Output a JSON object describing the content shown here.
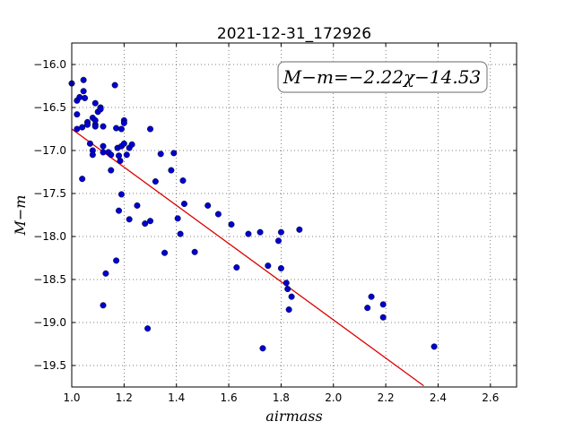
{
  "chart_data": {
    "type": "scatter",
    "title": "2021-12-31_172926",
    "xlabel": "airmass",
    "ylabel": "M−m",
    "xlim": [
      1.0,
      2.7
    ],
    "ylim": [
      -15.75,
      -19.75
    ],
    "y_inverted": true,
    "grid": true,
    "grid_style": "dotted",
    "x_ticks": [
      1.0,
      1.2,
      1.4,
      1.6,
      1.8,
      2.0,
      2.2,
      2.4,
      2.6
    ],
    "x_tick_labels": [
      "1.0",
      "1.2",
      "1.4",
      "1.6",
      "1.8",
      "2.0",
      "2.2",
      "2.4",
      "2.6"
    ],
    "y_ticks": [
      -16.0,
      -16.5,
      -17.0,
      -17.5,
      -18.0,
      -18.5,
      -19.0,
      -19.5
    ],
    "y_tick_labels": [
      "−16.0",
      "−16.5",
      "−17.0",
      "−17.5",
      "−18.0",
      "−18.5",
      "−19.0",
      "−19.5"
    ],
    "annotation": "M−m=−2.22χ−14.53",
    "annotation_position": "top-right",
    "fit": {
      "slope": -2.22,
      "intercept": -14.53,
      "x_range": [
        1.0,
        2.345
      ],
      "color": "#dd0000"
    },
    "point_color": "#0000cc",
    "series": [
      {
        "points": [
          [
            1.0,
            -16.22
          ],
          [
            1.02,
            -16.42
          ],
          [
            1.02,
            -16.58
          ],
          [
            1.02,
            -16.75
          ],
          [
            1.03,
            -16.38
          ],
          [
            1.04,
            -16.73
          ],
          [
            1.04,
            -17.33
          ],
          [
            1.045,
            -16.18
          ],
          [
            1.045,
            -16.31
          ],
          [
            1.05,
            -16.39
          ],
          [
            1.06,
            -16.67
          ],
          [
            1.06,
            -16.7
          ],
          [
            1.07,
            -16.92
          ],
          [
            1.08,
            -17.0
          ],
          [
            1.08,
            -17.05
          ],
          [
            1.08,
            -16.62
          ],
          [
            1.09,
            -16.65
          ],
          [
            1.09,
            -16.7
          ],
          [
            1.09,
            -16.72
          ],
          [
            1.09,
            -16.45
          ],
          [
            1.1,
            -16.55
          ],
          [
            1.11,
            -16.5
          ],
          [
            1.11,
            -16.52
          ],
          [
            1.12,
            -16.72
          ],
          [
            1.12,
            -16.95
          ],
          [
            1.12,
            -17.02
          ],
          [
            1.12,
            -18.8
          ],
          [
            1.13,
            -18.43
          ],
          [
            1.14,
            -17.02
          ],
          [
            1.15,
            -17.05
          ],
          [
            1.15,
            -17.23
          ],
          [
            1.165,
            -16.24
          ],
          [
            1.17,
            -16.74
          ],
          [
            1.17,
            -18.28
          ],
          [
            1.175,
            -16.97
          ],
          [
            1.18,
            -17.06
          ],
          [
            1.18,
            -17.7
          ],
          [
            1.185,
            -17.12
          ],
          [
            1.19,
            -16.75
          ],
          [
            1.19,
            -16.95
          ],
          [
            1.19,
            -17.51
          ],
          [
            1.2,
            -16.65
          ],
          [
            1.2,
            -16.68
          ],
          [
            1.2,
            -16.92
          ],
          [
            1.21,
            -17.05
          ],
          [
            1.22,
            -16.97
          ],
          [
            1.22,
            -17.8
          ],
          [
            1.23,
            -16.93
          ],
          [
            1.25,
            -17.64
          ],
          [
            1.28,
            -17.85
          ],
          [
            1.29,
            -19.07
          ],
          [
            1.3,
            -16.75
          ],
          [
            1.3,
            -17.82
          ],
          [
            1.32,
            -17.36
          ],
          [
            1.34,
            -17.04
          ],
          [
            1.355,
            -18.19
          ],
          [
            1.38,
            -17.23
          ],
          [
            1.39,
            -17.03
          ],
          [
            1.405,
            -17.79
          ],
          [
            1.415,
            -17.97
          ],
          [
            1.425,
            -17.35
          ],
          [
            1.43,
            -17.62
          ],
          [
            1.47,
            -18.18
          ],
          [
            1.52,
            -17.64
          ],
          [
            1.56,
            -17.74
          ],
          [
            1.61,
            -17.86
          ],
          [
            1.63,
            -18.36
          ],
          [
            1.675,
            -17.97
          ],
          [
            1.72,
            -17.95
          ],
          [
            1.73,
            -19.3
          ],
          [
            1.75,
            -18.34
          ],
          [
            1.79,
            -18.05
          ],
          [
            1.8,
            -17.95
          ],
          [
            1.8,
            -18.37
          ],
          [
            1.82,
            -18.54
          ],
          [
            1.825,
            -18.61
          ],
          [
            1.83,
            -18.85
          ],
          [
            1.84,
            -18.7
          ],
          [
            1.87,
            -17.92
          ],
          [
            2.13,
            -18.83
          ],
          [
            2.145,
            -18.7
          ],
          [
            2.19,
            -18.79
          ],
          [
            2.19,
            -18.94
          ],
          [
            2.385,
            -19.28
          ]
        ]
      }
    ]
  }
}
